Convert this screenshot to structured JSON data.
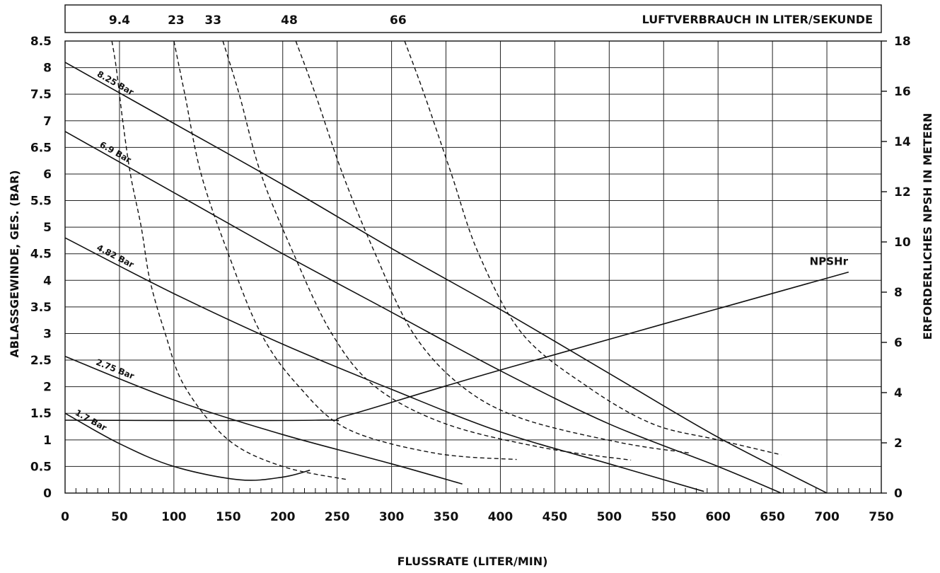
{
  "chart_data": {
    "type": "line",
    "xlabel": "FLUSSRATE (LITER/MIN)",
    "ylabel_left": "ABLASSGEWINDE, GES. (BAR)",
    "ylabel_right": "ERFORDERLICHES NPSH IN METERN",
    "top_axis_label": "LUFTVERBRAUCH IN LITER/SEKUNDE",
    "xlim": [
      0,
      750
    ],
    "ylim_left": [
      0,
      8.5
    ],
    "ylim_right": [
      0,
      18
    ],
    "x_ticks": [
      "0",
      "50",
      "100",
      "150",
      "200",
      "250",
      "300",
      "350",
      "400",
      "450",
      "500",
      "550",
      "600",
      "650",
      "700",
      "750"
    ],
    "y_left_ticks": [
      "0",
      "0.5",
      "1",
      "1.5",
      "2",
      "2.5",
      "3",
      "3.5",
      "4",
      "4.5",
      "5",
      "5.5",
      "6",
      "6.5",
      "7",
      "7.5",
      "8",
      "8.5"
    ],
    "y_right_ticks": [
      "0",
      "2",
      "4",
      "6",
      "8",
      "10",
      "12",
      "14",
      "16",
      "18"
    ],
    "grid": true,
    "pressure_series": [
      {
        "name": "8.25 Bar",
        "points": [
          [
            0,
            8.1
          ],
          [
            100,
            6.95
          ],
          [
            200,
            5.8
          ],
          [
            300,
            4.6
          ],
          [
            400,
            3.45
          ],
          [
            500,
            2.25
          ],
          [
            600,
            1.05
          ],
          [
            700,
            0
          ]
        ]
      },
      {
        "name": "6.9 Bar",
        "points": [
          [
            0,
            6.8
          ],
          [
            100,
            5.65
          ],
          [
            200,
            4.5
          ],
          [
            300,
            3.4
          ],
          [
            400,
            2.3
          ],
          [
            500,
            1.3
          ],
          [
            600,
            0.5
          ],
          [
            658,
            0
          ]
        ]
      },
      {
        "name": "4.82 Bar",
        "points": [
          [
            0,
            4.8
          ],
          [
            100,
            3.75
          ],
          [
            200,
            2.8
          ],
          [
            300,
            1.95
          ],
          [
            400,
            1.15
          ],
          [
            500,
            0.55
          ],
          [
            587,
            0.03
          ]
        ]
      },
      {
        "name": "2.75 Bar",
        "points": [
          [
            0,
            2.57
          ],
          [
            100,
            1.75
          ],
          [
            200,
            1.1
          ],
          [
            300,
            0.55
          ],
          [
            365,
            0.17
          ]
        ]
      },
      {
        "name": "1.7 Bar",
        "points": [
          [
            0,
            1.5
          ],
          [
            50,
            0.93
          ],
          [
            100,
            0.5
          ],
          [
            160,
            0.25
          ],
          [
            200,
            0.3
          ],
          [
            225,
            0.43
          ]
        ]
      }
    ],
    "air_consumption_series": [
      {
        "name": "9.4",
        "label_x": 50,
        "points": [
          [
            43,
            8.5
          ],
          [
            47,
            8.0
          ],
          [
            53,
            7.0
          ],
          [
            60,
            6.0
          ],
          [
            70,
            5.0
          ],
          [
            78,
            4.0
          ],
          [
            92,
            3.0
          ],
          [
            110,
            2.0
          ],
          [
            150,
            1.0
          ],
          [
            200,
            0.5
          ],
          [
            260,
            0.25
          ]
        ]
      },
      {
        "name": "23",
        "label_x": 102,
        "points": [
          [
            100,
            8.5
          ],
          [
            110,
            7.5
          ],
          [
            125,
            6.0
          ],
          [
            150,
            4.5
          ],
          [
            180,
            3.0
          ],
          [
            215,
            2.0
          ],
          [
            260,
            1.2
          ],
          [
            340,
            0.75
          ],
          [
            415,
            0.63
          ]
        ]
      },
      {
        "name": "33",
        "label_x": 136,
        "points": [
          [
            145,
            8.5
          ],
          [
            160,
            7.5
          ],
          [
            180,
            6.0
          ],
          [
            210,
            4.5
          ],
          [
            245,
            3.0
          ],
          [
            285,
            2.0
          ],
          [
            350,
            1.3
          ],
          [
            440,
            0.85
          ],
          [
            520,
            0.62
          ]
        ]
      },
      {
        "name": "48",
        "label_x": 206,
        "points": [
          [
            212,
            8.5
          ],
          [
            230,
            7.5
          ],
          [
            255,
            6.0
          ],
          [
            285,
            4.5
          ],
          [
            320,
            3.0
          ],
          [
            365,
            2.0
          ],
          [
            420,
            1.4
          ],
          [
            510,
            0.95
          ],
          [
            575,
            0.75
          ]
        ]
      },
      {
        "name": "66",
        "label_x": 306,
        "points": [
          [
            312,
            8.5
          ],
          [
            330,
            7.5
          ],
          [
            355,
            6.0
          ],
          [
            380,
            4.5
          ],
          [
            420,
            3.0
          ],
          [
            480,
            2.0
          ],
          [
            540,
            1.3
          ],
          [
            600,
            1.0
          ],
          [
            658,
            0.72
          ]
        ]
      }
    ],
    "npsh_series": {
      "name": "NPSHr",
      "points": [
        [
          0,
          2.9
        ],
        [
          230,
          2.9
        ],
        [
          260,
          3.1
        ],
        [
          400,
          4.9
        ],
        [
          720,
          8.8
        ]
      ]
    }
  }
}
